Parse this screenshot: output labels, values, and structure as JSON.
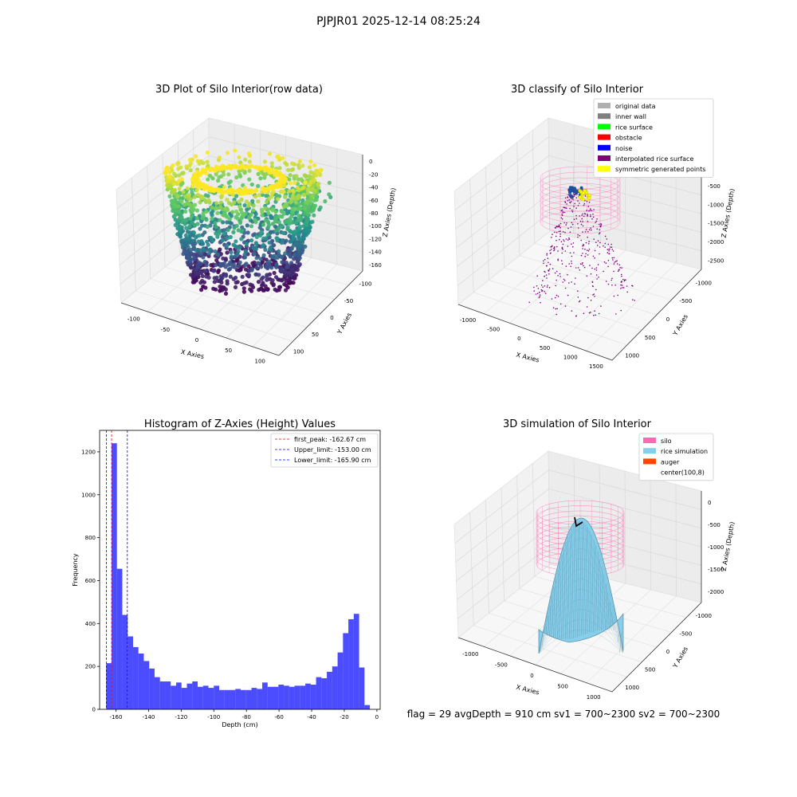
{
  "suptitle": "PJPJR01 2025-12-14 08:25:24",
  "chart_data": [
    {
      "type": "scatter",
      "projection": "3d",
      "title": "3D Plot of Silo Interior(row data)",
      "xlabel": "X Axies",
      "ylabel": "Y Axies",
      "zlabel": "Z Axies (Depth)",
      "x_ticks": [
        "-100",
        "-50",
        "0",
        "50",
        "100"
      ],
      "y_ticks": [
        "-100",
        "-50",
        "0",
        "50",
        "100"
      ],
      "z_ticks": [
        "0",
        "-20",
        "-40",
        "-60",
        "-80",
        "-100",
        "-120",
        "-140",
        "-160"
      ],
      "xlim": [
        -120,
        120
      ],
      "ylim": [
        -110,
        110
      ],
      "zlim": [
        -170,
        5
      ],
      "colormap": "viridis",
      "grid": true
    },
    {
      "type": "scatter",
      "projection": "3d",
      "title": "3D classify of Silo Interior",
      "xlabel": "X Axies",
      "ylabel": "Y Axies",
      "zlabel": "Z Axies (Depth)",
      "x_ticks": [
        "-1000",
        "-500",
        "0",
        "500",
        "1000",
        "1500"
      ],
      "y_ticks": [
        "-1000",
        "-500",
        "0",
        "500",
        "1000"
      ],
      "z_ticks": [
        "0",
        "-500",
        "-1000",
        "-1500",
        "-2000",
        "-2500"
      ],
      "legend_position": "top-right",
      "legend": [
        {
          "label": "original data",
          "color": "#b0b0b0"
        },
        {
          "label": "inner wall",
          "color": "#808080"
        },
        {
          "label": "rice surface",
          "color": "#00ff00"
        },
        {
          "label": "obstacle",
          "color": "#ff0000"
        },
        {
          "label": "noise",
          "color": "#0000ff"
        },
        {
          "label": "interpolated rice surface",
          "color": "#800080"
        },
        {
          "label": "symmetric generated points",
          "color": "#ffff00"
        }
      ],
      "grid": true
    },
    {
      "type": "bar",
      "subtype": "histogram",
      "title": "Histogram of Z-Axies (Height) Values",
      "xlabel": "Depth (cm)",
      "ylabel": "Frequency",
      "xlim": [
        -170,
        2
      ],
      "ylim": [
        0,
        1300
      ],
      "x_ticks": [
        -160,
        -140,
        -120,
        -100,
        -80,
        -60,
        -40,
        -20,
        0
      ],
      "y_ticks": [
        0,
        200,
        400,
        600,
        800,
        1000,
        1200
      ],
      "bin_start": -166.0,
      "bin_width": 3.3,
      "values": [
        215,
        1240,
        655,
        440,
        340,
        290,
        260,
        225,
        190,
        150,
        130,
        130,
        110,
        125,
        100,
        120,
        130,
        105,
        110,
        100,
        110,
        90,
        90,
        90,
        95,
        90,
        90,
        100,
        95,
        125,
        105,
        105,
        115,
        110,
        105,
        110,
        110,
        120,
        115,
        150,
        145,
        175,
        200,
        265,
        355,
        420,
        445,
        195,
        20
      ],
      "bar_color": "#0000ff",
      "vlines": [
        {
          "label": "first_peak: -162.67 cm",
          "x": -162.67,
          "color": "#ff0000"
        },
        {
          "label": "Upper_limit: -153.00 cm",
          "x": -153.0,
          "color": "#0000ff"
        },
        {
          "label": "Lower_limit: -165.90 cm",
          "x": -165.9,
          "color": "#0000ff"
        }
      ],
      "legend_position": "top-right",
      "grid": false
    },
    {
      "type": "surface",
      "projection": "3d",
      "title": "3D simulation of Silo Interior",
      "xlabel": "X Axies",
      "ylabel": "Y Axies",
      "zlabel": "Z Axies (Depth)",
      "x_ticks": [
        "-1000",
        "-500",
        "0",
        "500",
        "1000"
      ],
      "y_ticks": [
        "-1000",
        "-500",
        "0",
        "500",
        "1000"
      ],
      "z_ticks": [
        "0",
        "-500",
        "-1000",
        "-1500",
        "-2000"
      ],
      "legend_position": "top-right",
      "legend": [
        {
          "label": "silo",
          "color": "#ff69b4"
        },
        {
          "label": "rice simulation",
          "color": "#87ceeb"
        },
        {
          "label": "auger",
          "color": "#ff4500"
        },
        {
          "label": "center(100,8)",
          "color": ""
        }
      ],
      "grid": true
    }
  ],
  "footer": "flag = 29   avgDepth = 910 cm   sv1 = 700~2300   sv2 = 700~2300"
}
